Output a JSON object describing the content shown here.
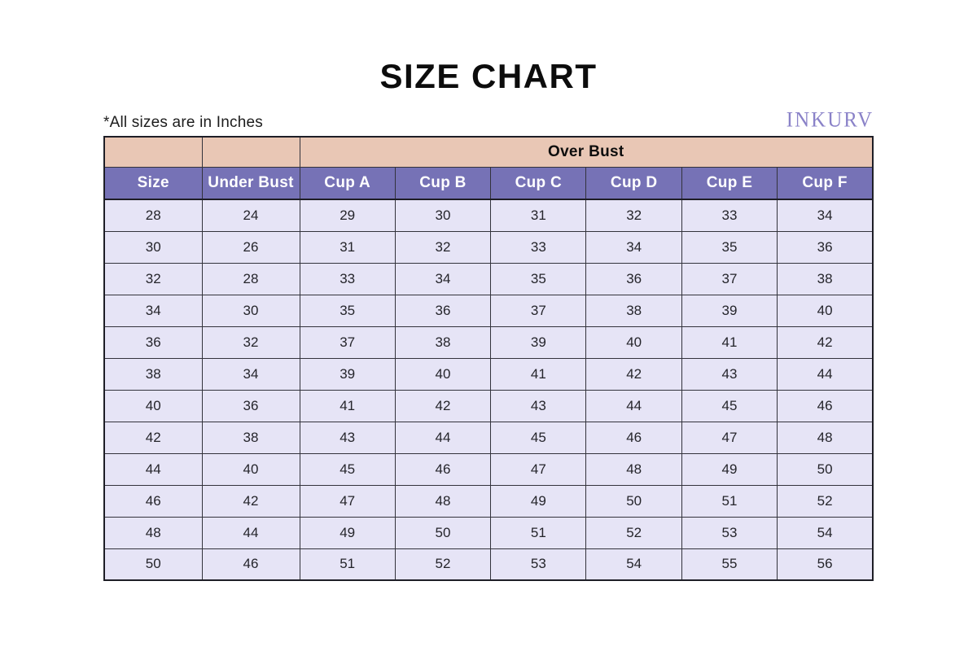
{
  "page": {
    "title": "SIZE CHART",
    "note": "*All sizes are in Inches",
    "brand": "INKURV"
  },
  "colors": {
    "group_header_bg": "#e9c7b5",
    "column_header_bg": "#7672b6",
    "column_header_text": "#ffffff",
    "data_row_bg": "#e6e4f6",
    "brand_text": "#8a82c8",
    "outer_border": "#1e1e26",
    "row_divider": "#5a5a64"
  },
  "chart_data": {
    "type": "table",
    "title": "SIZE CHART",
    "units": "Inches",
    "group_header": {
      "label": "Over Bust",
      "span_columns": [
        "Cup A",
        "Cup B",
        "Cup C",
        "Cup D",
        "Cup E",
        "Cup F"
      ]
    },
    "columns": [
      "Size",
      "Under Bust",
      "Cup A",
      "Cup B",
      "Cup C",
      "Cup D",
      "Cup E",
      "Cup F"
    ],
    "rows": [
      [
        28,
        24,
        29,
        30,
        31,
        32,
        33,
        34
      ],
      [
        30,
        26,
        31,
        32,
        33,
        34,
        35,
        36
      ],
      [
        32,
        28,
        33,
        34,
        35,
        36,
        37,
        38
      ],
      [
        34,
        30,
        35,
        36,
        37,
        38,
        39,
        40
      ],
      [
        36,
        32,
        37,
        38,
        39,
        40,
        41,
        42
      ],
      [
        38,
        34,
        39,
        40,
        41,
        42,
        43,
        44
      ],
      [
        40,
        36,
        41,
        42,
        43,
        44,
        45,
        46
      ],
      [
        42,
        38,
        43,
        44,
        45,
        46,
        47,
        48
      ],
      [
        44,
        40,
        45,
        46,
        47,
        48,
        49,
        50
      ],
      [
        46,
        42,
        47,
        48,
        49,
        50,
        51,
        52
      ],
      [
        48,
        44,
        49,
        50,
        51,
        52,
        53,
        54
      ],
      [
        50,
        46,
        51,
        52,
        53,
        54,
        55,
        56
      ]
    ]
  }
}
